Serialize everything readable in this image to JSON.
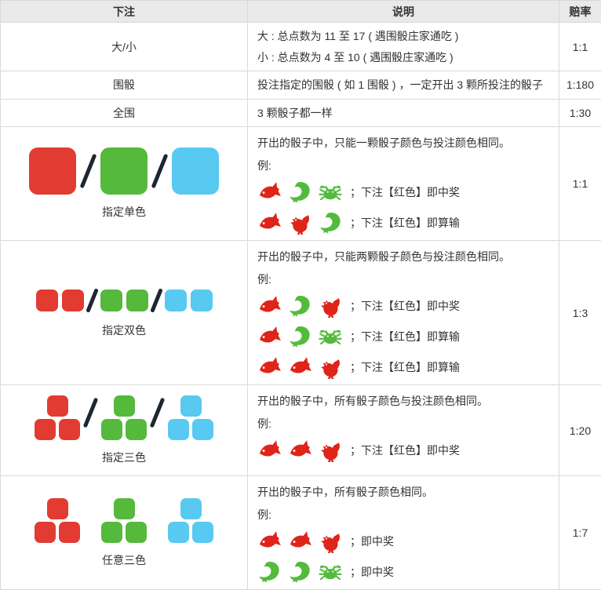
{
  "table": {
    "headers": [
      {
        "id": "bet",
        "label": "下注"
      },
      {
        "id": "desc",
        "label": "说明"
      },
      {
        "id": "odds",
        "label": "赔率"
      }
    ],
    "colors": {
      "red": "#e23b32",
      "green": "#55b93c",
      "blue": "#58c9f0",
      "icon_red": "#df241a",
      "icon_green": "#53bb3b",
      "slash": "#1c2733"
    },
    "rows": [
      {
        "id": "big-small",
        "bet": "大/小",
        "desc_lines": [
          "大 : 总点数为 11 至 17 ( 遇围骰庄家通吃 )",
          "小 : 总点数为 4 至 10 ( 遇围骰庄家通吃 )"
        ],
        "odds": "1:1"
      },
      {
        "id": "specific-triple",
        "bet": "围骰",
        "desc_lines": [
          "投注指定的围骰 ( 如 1 围骰 ) ，一定开出 3 颗所投注的骰子"
        ],
        "odds": "1:180"
      },
      {
        "id": "any-triple",
        "bet": "全围",
        "desc_lines": [
          "3 颗骰子都一样"
        ],
        "odds": "1:30"
      },
      {
        "id": "single-color",
        "bet_label": "指定单色",
        "graphic": {
          "kind": "single",
          "groups": [
            "red",
            "green",
            "blue"
          ],
          "slashes": true
        },
        "desc_intro": "开出的骰子中，只能一颗骰子颜色与投注颜色相同。",
        "example_label": "例:",
        "examples": [
          {
            "icons": [
              {
                "name": "fish",
                "color": "icon_red"
              },
              {
                "name": "prawn",
                "color": "icon_green"
              },
              {
                "name": "crab",
                "color": "icon_green"
              }
            ],
            "text": "；下注【红色】即中奖"
          },
          {
            "icons": [
              {
                "name": "fish",
                "color": "icon_red"
              },
              {
                "name": "rooster",
                "color": "icon_red"
              },
              {
                "name": "prawn",
                "color": "icon_green"
              }
            ],
            "text": "；下注【红色】即算输"
          }
        ],
        "odds": "1:1"
      },
      {
        "id": "double-color",
        "bet_label": "指定双色",
        "graphic": {
          "kind": "pairs",
          "groups": [
            "red",
            "green",
            "blue"
          ],
          "slashes": true
        },
        "desc_intro": "开出的骰子中，只能两颗骰子颜色与投注颜色相同。",
        "example_label": "例:",
        "examples": [
          {
            "icons": [
              {
                "name": "fish",
                "color": "icon_red"
              },
              {
                "name": "prawn",
                "color": "icon_green"
              },
              {
                "name": "rooster",
                "color": "icon_red"
              }
            ],
            "text": "；下注【红色】即中奖"
          },
          {
            "icons": [
              {
                "name": "fish",
                "color": "icon_red"
              },
              {
                "name": "prawn",
                "color": "icon_green"
              },
              {
                "name": "crab",
                "color": "icon_green"
              }
            ],
            "text": "；下注【红色】即算输"
          },
          {
            "icons": [
              {
                "name": "fish",
                "color": "icon_red"
              },
              {
                "name": "fish",
                "color": "icon_red"
              },
              {
                "name": "rooster",
                "color": "icon_red"
              }
            ],
            "text": "；下注【红色】即算输"
          }
        ],
        "odds": "1:3"
      },
      {
        "id": "triple-color",
        "bet_label": "指定三色",
        "graphic": {
          "kind": "pyramid",
          "groups": [
            "red",
            "green",
            "blue"
          ],
          "slashes": true
        },
        "desc_intro": "开出的骰子中，所有骰子颜色与投注颜色相同。",
        "example_label": "例:",
        "examples": [
          {
            "icons": [
              {
                "name": "fish",
                "color": "icon_red"
              },
              {
                "name": "fish",
                "color": "icon_red"
              },
              {
                "name": "rooster",
                "color": "icon_red"
              }
            ],
            "text": "；下注【红色】即中奖"
          }
        ],
        "odds": "1:20"
      },
      {
        "id": "any-three-color",
        "bet_label": "任意三色",
        "graphic": {
          "kind": "pyramid",
          "groups": [
            "red",
            "green",
            "blue"
          ],
          "slashes": false
        },
        "desc_intro": "开出的骰子中，所有骰子颜色相同。",
        "example_label": "例:",
        "examples": [
          {
            "icons": [
              {
                "name": "fish",
                "color": "icon_red"
              },
              {
                "name": "fish",
                "color": "icon_red"
              },
              {
                "name": "rooster",
                "color": "icon_red"
              }
            ],
            "text": "；即中奖"
          },
          {
            "icons": [
              {
                "name": "prawn",
                "color": "icon_green"
              },
              {
                "name": "prawn",
                "color": "icon_green"
              },
              {
                "name": "crab",
                "color": "icon_green"
              }
            ],
            "text": "；即中奖"
          }
        ],
        "odds": "1:7"
      }
    ]
  }
}
